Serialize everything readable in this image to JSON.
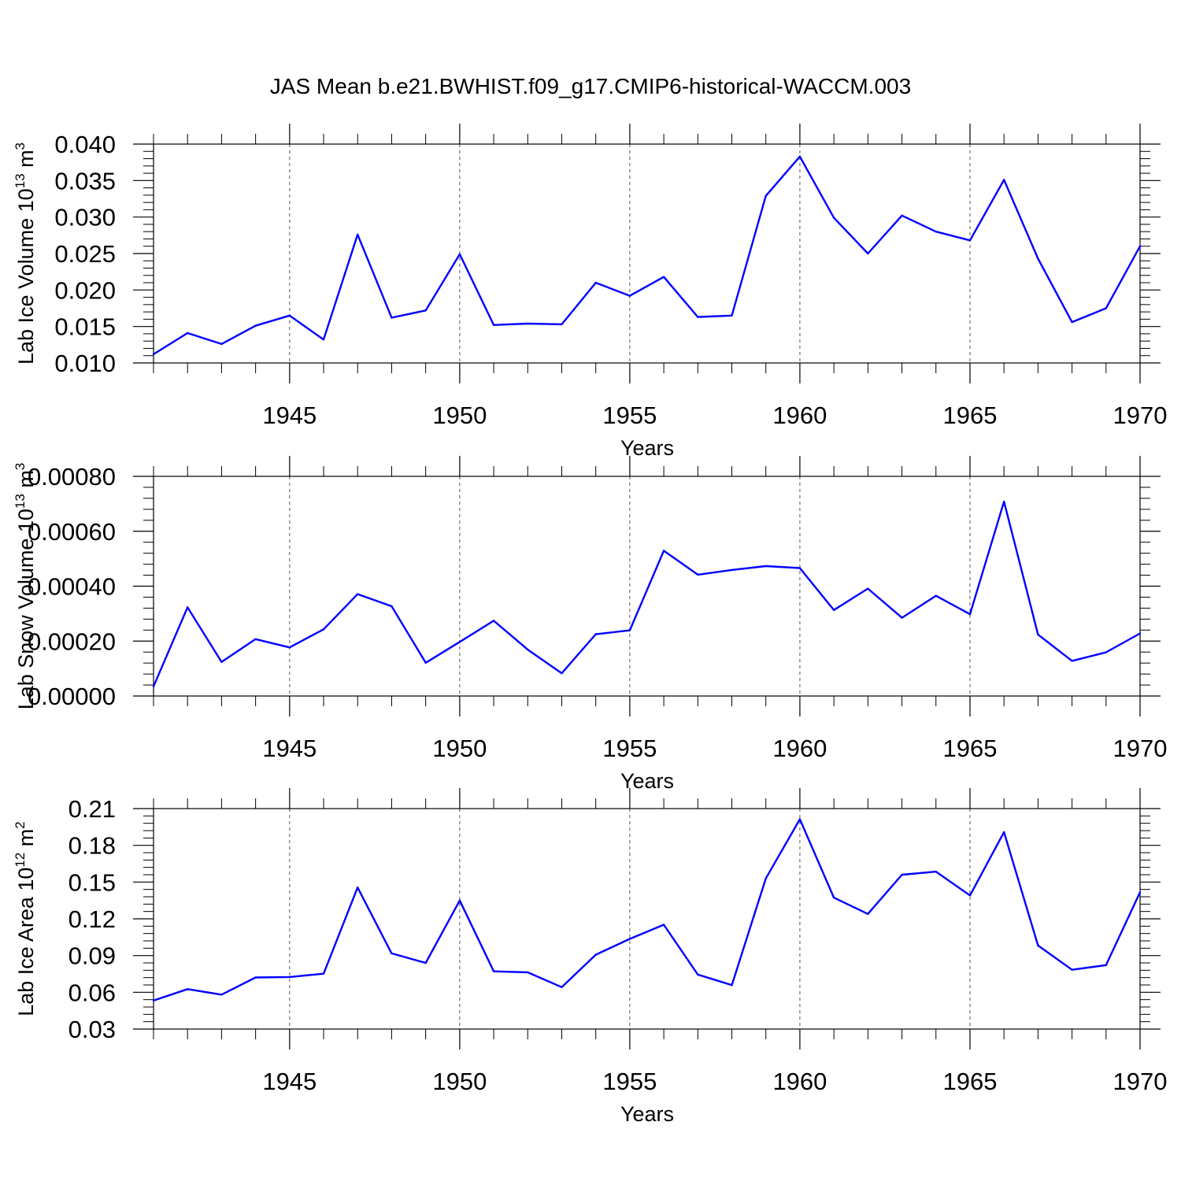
{
  "title": "JAS Mean b.e21.BWHIST.f09_g17.CMIP6-historical-WACCM.003",
  "colors": {
    "line": "#0000ff",
    "axis": "#000000",
    "grid": "#555555",
    "background": "#ffffff"
  },
  "chart_data": [
    {
      "type": "line",
      "xlabel": "Years",
      "ylabel_main": "Lab Ice Volume 10",
      "ylabel_sup": "13",
      "ylabel_unit": " m",
      "ylabel_unit_sup": "3",
      "xlim": [
        1941,
        1970
      ],
      "ylim": [
        0.01,
        0.04
      ],
      "yticks": [
        0.01,
        0.015,
        0.02,
        0.025,
        0.03,
        0.035,
        0.04
      ],
      "ytick_labels": [
        "0.010",
        "0.015",
        "0.020",
        "0.025",
        "0.030",
        "0.035",
        "0.040"
      ],
      "xticks": [
        1945,
        1950,
        1955,
        1960,
        1965,
        1970
      ],
      "xtick_labels": [
        "1945",
        "1950",
        "1955",
        "1960",
        "1965",
        "1970"
      ],
      "grid": "vertical dashed at major x ticks",
      "x": [
        1941,
        1942,
        1943,
        1944,
        1945,
        1946,
        1947,
        1948,
        1949,
        1950,
        1951,
        1952,
        1953,
        1954,
        1955,
        1956,
        1957,
        1958,
        1959,
        1960,
        1961,
        1962,
        1963,
        1964,
        1965,
        1966,
        1967,
        1968,
        1969,
        1970
      ],
      "values": [
        0.0112,
        0.0141,
        0.0126,
        0.0151,
        0.0165,
        0.0132,
        0.0276,
        0.0162,
        0.0172,
        0.0249,
        0.0152,
        0.0154,
        0.0153,
        0.021,
        0.0192,
        0.0218,
        0.0163,
        0.0165,
        0.0329,
        0.0383,
        0.0299,
        0.025,
        0.0302,
        0.028,
        0.0268,
        0.0351,
        0.0243,
        0.0156,
        0.0175,
        0.026
      ]
    },
    {
      "type": "line",
      "xlabel": "Years",
      "ylabel_main": "Lab Snow Volume 10",
      "ylabel_sup": "13",
      "ylabel_unit": " m",
      "ylabel_unit_sup": "3",
      "xlim": [
        1941,
        1970
      ],
      "ylim": [
        0.0,
        0.0008
      ],
      "yticks": [
        0.0,
        0.0002,
        0.0004,
        0.0006,
        0.0008
      ],
      "ytick_labels": [
        "0.00000",
        "0.00020",
        "0.00040",
        "0.00060",
        "0.00080"
      ],
      "xticks": [
        1945,
        1950,
        1955,
        1960,
        1965,
        1970
      ],
      "xtick_labels": [
        "1945",
        "1950",
        "1955",
        "1960",
        "1965",
        "1970"
      ],
      "grid": "vertical dashed at major x ticks",
      "x": [
        1941,
        1942,
        1943,
        1944,
        1945,
        1946,
        1947,
        1948,
        1949,
        1950,
        1951,
        1952,
        1953,
        1954,
        1955,
        1956,
        1957,
        1958,
        1959,
        1960,
        1961,
        1962,
        1963,
        1964,
        1965,
        1966,
        1967,
        1968,
        1969,
        1970
      ],
      "values": [
        3.5e-05,
        0.000323,
        0.000124,
        0.000207,
        0.000177,
        0.000243,
        0.000371,
        0.000327,
        0.000121,
        0.000197,
        0.000274,
        0.000169,
        8.3e-05,
        0.000225,
        0.000239,
        0.000529,
        0.000442,
        0.000459,
        0.000473,
        0.000466,
        0.000313,
        0.000391,
        0.000285,
        0.000365,
        0.000298,
        0.000708,
        0.000224,
        0.000128,
        0.000159,
        0.000228
      ]
    },
    {
      "type": "line",
      "xlabel": "Years",
      "ylabel_main": "Lab Ice Area 10",
      "ylabel_sup": "12",
      "ylabel_unit": " m",
      "ylabel_unit_sup": "2",
      "xlim": [
        1941,
        1970
      ],
      "ylim": [
        0.03,
        0.21
      ],
      "yticks": [
        0.03,
        0.06,
        0.09,
        0.12,
        0.15,
        0.18,
        0.21
      ],
      "ytick_labels": [
        "0.03",
        "0.06",
        "0.09",
        "0.12",
        "0.15",
        "0.18",
        "0.21"
      ],
      "xticks": [
        1945,
        1950,
        1955,
        1960,
        1965,
        1970
      ],
      "xtick_labels": [
        "1945",
        "1950",
        "1955",
        "1960",
        "1965",
        "1970"
      ],
      "grid": "vertical dashed at major x ticks",
      "x": [
        1941,
        1942,
        1943,
        1944,
        1945,
        1946,
        1947,
        1948,
        1949,
        1950,
        1951,
        1952,
        1953,
        1954,
        1955,
        1956,
        1957,
        1958,
        1959,
        1960,
        1961,
        1962,
        1963,
        1964,
        1965,
        1966,
        1967,
        1968,
        1969,
        1970
      ],
      "values": [
        0.0533,
        0.0626,
        0.0581,
        0.0721,
        0.0725,
        0.0752,
        0.1456,
        0.0918,
        0.084,
        0.135,
        0.0771,
        0.0763,
        0.0642,
        0.0907,
        0.1036,
        0.1152,
        0.0745,
        0.0659,
        0.153,
        0.2013,
        0.1373,
        0.124,
        0.156,
        0.1585,
        0.1391,
        0.1908,
        0.0982,
        0.0784,
        0.0822,
        0.1417
      ]
    }
  ]
}
